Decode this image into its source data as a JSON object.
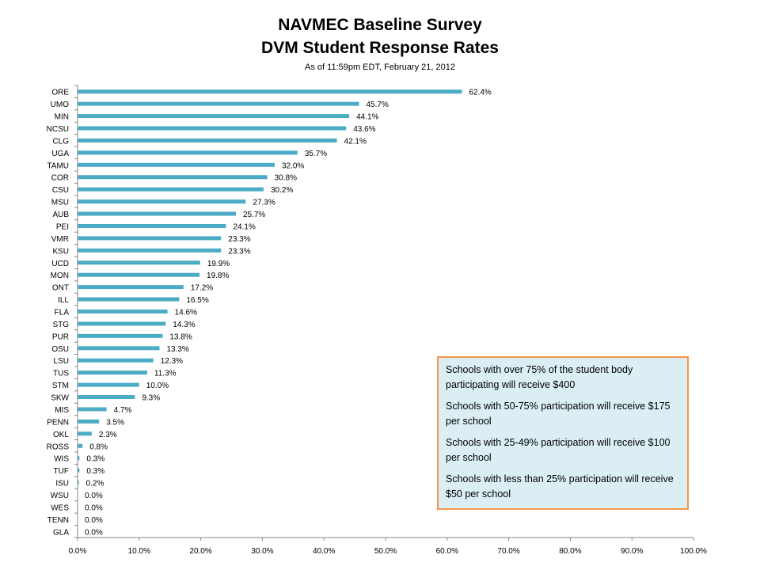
{
  "header": {
    "title_line1": "NAVMEC Baseline Survey",
    "title_line2": "DVM Student Response Rates",
    "subtitle": "As of 11:59pm EDT,  February 21, 2012"
  },
  "info_box": {
    "lines": [
      "Schools with over 75% of the student body participating will receive $400",
      "Schools with 50-75% participation will receive $175 per school",
      "Schools with 25-49% participation will receive $100 per school",
      "Schools with less than 25% participation will receive $50 per school"
    ]
  },
  "colors": {
    "bar": "#4bacc6",
    "box_fill": "#dbeef4",
    "box_border": "#f79646"
  },
  "chart_data": {
    "type": "bar",
    "orientation": "horizontal",
    "categories": [
      "ORE",
      "UMO",
      "MIN",
      "NCSU",
      "CLG",
      "UGA",
      "TAMU",
      "COR",
      "CSU",
      "MSU",
      "AUB",
      "PEI",
      "VMR",
      "KSU",
      "UCD",
      "MON",
      "ONT",
      "ILL",
      "FLA",
      "STG",
      "PUR",
      "OSU",
      "LSU",
      "TUS",
      "STM",
      "SKW",
      "MIS",
      "PENN",
      "OKL",
      "ROSS",
      "WIS",
      "TUF",
      "ISU",
      "WSU",
      "WES",
      "TENN",
      "GLA"
    ],
    "values": [
      62.4,
      45.7,
      44.1,
      43.6,
      42.1,
      35.7,
      32.0,
      30.8,
      30.2,
      27.3,
      25.7,
      24.1,
      23.3,
      23.3,
      19.9,
      19.8,
      17.2,
      16.5,
      14.6,
      14.3,
      13.8,
      13.3,
      12.3,
      11.3,
      10.0,
      9.3,
      4.7,
      3.5,
      2.3,
      0.8,
      0.3,
      0.3,
      0.2,
      0.0,
      0.0,
      0.0,
      0.0
    ],
    "value_labels": [
      "62.4%",
      "45.7%",
      "44.1%",
      "43.6%",
      "42.1%",
      "35.7%",
      "32.0%",
      "30.8%",
      "30.2%",
      "27.3%",
      "25.7%",
      "24.1%",
      "23.3%",
      "23.3%",
      "19.9%",
      "19.8%",
      "17.2%",
      "16.5%",
      "14.6%",
      "14.3%",
      "13.8%",
      "13.3%",
      "12.3%",
      "11.3%",
      "10.0%",
      "9.3%",
      "4.7%",
      "3.5%",
      "2.3%",
      "0.8%",
      "0.3%",
      "0.3%",
      "0.2%",
      "0.0%",
      "0.0%",
      "0.0%",
      "0.0%"
    ],
    "x_ticks": [
      "0.0%",
      "10.0%",
      "20.0%",
      "30.0%",
      "40.0%",
      "50.0%",
      "60.0%",
      "70.0%",
      "80.0%",
      "90.0%",
      "100.0%"
    ],
    "xlim": [
      0,
      100
    ],
    "grid": false,
    "legend": "none"
  }
}
